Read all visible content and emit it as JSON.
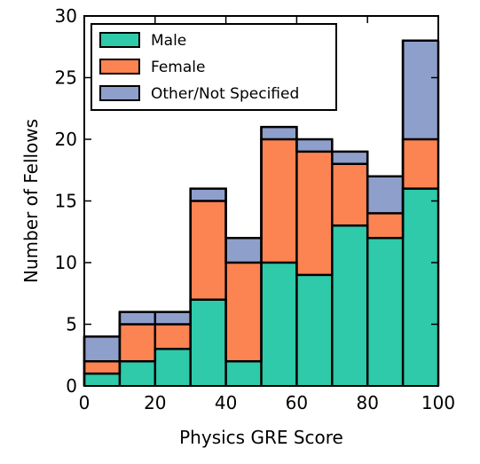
{
  "chart_data": {
    "type": "bar",
    "stacked": true,
    "histogram": true,
    "title": "",
    "xlabel": "Physics GRE Score",
    "ylabel": "Number of Fellows",
    "xlim": [
      0,
      100
    ],
    "ylim": [
      0,
      30
    ],
    "xticks": [
      0,
      20,
      40,
      60,
      80,
      100
    ],
    "yticks": [
      0,
      5,
      10,
      15,
      20,
      25,
      30
    ],
    "bin_edges": [
      0,
      10,
      20,
      30,
      40,
      50,
      60,
      70,
      80,
      90,
      100
    ],
    "grid": false,
    "legend_position": "top-left",
    "series": [
      {
        "name": "Male",
        "color": "#2ecaa9",
        "values": [
          1,
          2,
          3,
          7,
          2,
          10,
          9,
          13,
          12,
          16
        ]
      },
      {
        "name": "Female",
        "color": "#fc8352",
        "values": [
          1,
          3,
          2,
          8,
          8,
          10,
          10,
          5,
          2,
          4
        ]
      },
      {
        "name": "Other/Not Specified",
        "color": "#8f9fcb",
        "values": [
          2,
          1,
          1,
          1,
          2,
          1,
          1,
          1,
          3,
          8
        ]
      }
    ]
  }
}
